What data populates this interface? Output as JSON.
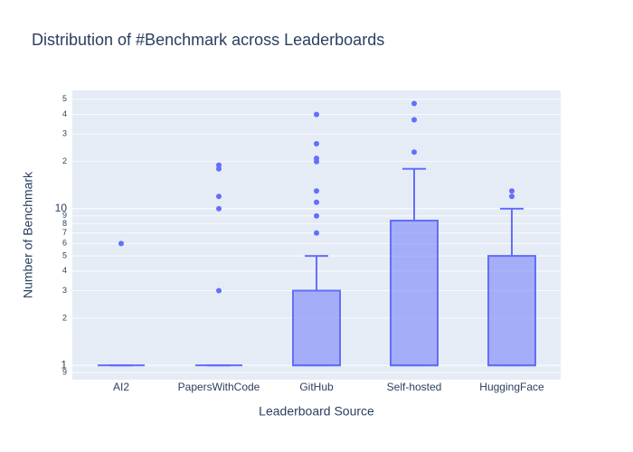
{
  "chart_data": {
    "type": "box",
    "title": "Distribution of #Benchmark across Leaderboards",
    "x_label": "Leaderboard Source",
    "y_label": "Number of Benchmark",
    "categories": [
      "AI2",
      "PapersWithCode",
      "GitHub",
      "Self-hosted",
      "HuggingFace"
    ],
    "q1": [
      1,
      1,
      1,
      1,
      1
    ],
    "median": [
      1,
      1,
      1,
      1,
      1
    ],
    "q3": [
      1,
      1,
      3,
      8.4,
      5
    ],
    "lower": [
      1,
      1,
      1,
      1,
      1
    ],
    "upper": [
      1,
      1,
      5,
      18,
      10
    ],
    "outliers": [
      [
        6
      ],
      [
        3,
        10,
        12,
        18,
        19
      ],
      [
        7,
        9,
        11,
        13,
        20,
        21,
        26,
        40
      ],
      [
        23,
        37,
        47
      ],
      [
        12,
        13
      ]
    ],
    "color": "#636efa",
    "fill": "rgba(99,110,250,0.5)",
    "log_y": true,
    "grid": true,
    "ylim": [
      0.81,
      57
    ],
    "yticks": [
      {
        "value": 0.9,
        "label": "9"
      },
      1,
      2,
      3,
      4,
      5,
      6,
      7,
      8,
      9,
      10,
      {
        "value": 20,
        "label": "2"
      },
      {
        "value": 30,
        "label": "3"
      },
      {
        "value": 40,
        "label": "4"
      },
      {
        "value": 50,
        "label": "5"
      }
    ]
  }
}
